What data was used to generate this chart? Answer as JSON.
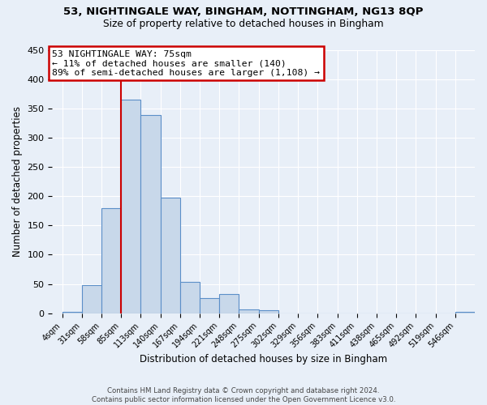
{
  "title1": "53, NIGHTINGALE WAY, BINGHAM, NOTTINGHAM, NG13 8QP",
  "title2": "Size of property relative to detached houses in Bingham",
  "xlabel": "Distribution of detached houses by size in Bingham",
  "ylabel": "Number of detached properties",
  "bin_labels": [
    "4sqm",
    "31sqm",
    "58sqm",
    "85sqm",
    "113sqm",
    "140sqm",
    "167sqm",
    "194sqm",
    "221sqm",
    "248sqm",
    "275sqm",
    "302sqm",
    "329sqm",
    "356sqm",
    "383sqm",
    "411sqm",
    "438sqm",
    "465sqm",
    "492sqm",
    "519sqm",
    "546sqm"
  ],
  "bin_values": [
    3,
    48,
    180,
    365,
    338,
    197,
    54,
    26,
    33,
    6,
    5,
    0,
    0,
    0,
    0,
    0,
    0,
    0,
    0,
    0,
    3
  ],
  "bar_color": "#c8d8ea",
  "bar_edge_color": "#5b8fc8",
  "property_line_color": "#cc0000",
  "property_line_x": 2.5,
  "annotation_title": "53 NIGHTINGALE WAY: 75sqm",
  "annotation_line1": "← 11% of detached houses are smaller (140)",
  "annotation_line2": "89% of semi-detached houses are larger (1,108) →",
  "annotation_box_facecolor": "#ffffff",
  "annotation_box_edgecolor": "#cc0000",
  "ylim": [
    0,
    450
  ],
  "yticks": [
    0,
    50,
    100,
    150,
    200,
    250,
    300,
    350,
    400,
    450
  ],
  "background_color": "#e8eff8",
  "grid_color": "#ffffff",
  "footer1": "Contains HM Land Registry data © Crown copyright and database right 2024.",
  "footer2": "Contains public sector information licensed under the Open Government Licence v3.0."
}
